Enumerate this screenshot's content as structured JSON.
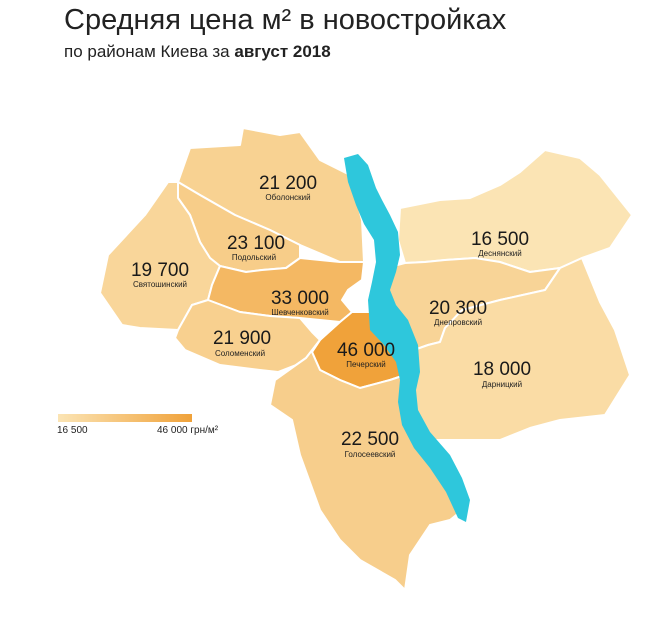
{
  "header": {
    "title": "Средняя цена м² в новостройках",
    "subtitle_prefix": "по районам Киева за",
    "subtitle_bold": "август 2018"
  },
  "legend": {
    "min_label": "16 500",
    "max_label": "46 000 грн/м²",
    "min_value": 16500,
    "max_value": 46000,
    "color_low": "#fbe4b4",
    "color_high": "#f0a23a"
  },
  "river": {
    "color": "#2ec7dc"
  },
  "districts": [
    {
      "key": "obolon",
      "name": "Оболонский",
      "price_label": "21 200",
      "price": 21200
    },
    {
      "key": "podil",
      "name": "Подольский",
      "price_label": "23 100",
      "price": 23100
    },
    {
      "key": "sviatoshyn",
      "name": "Святошинский",
      "price_label": "19 700",
      "price": 19700
    },
    {
      "key": "shevchenko",
      "name": "Шевченковский",
      "price_label": "33 000",
      "price": 33000
    },
    {
      "key": "solomyanka",
      "name": "Соломенский",
      "price_label": "21 900",
      "price": 21900
    },
    {
      "key": "pechersk",
      "name": "Печерский",
      "price_label": "46 000",
      "price": 46000
    },
    {
      "key": "holosiiv",
      "name": "Голосеевский",
      "price_label": "22 500",
      "price": 22500
    },
    {
      "key": "desna",
      "name": "Деснянский",
      "price_label": "16 500",
      "price": 16500
    },
    {
      "key": "dnipro",
      "name": "Днепровский",
      "price_label": "20 300",
      "price": 20300
    },
    {
      "key": "darnytsia",
      "name": "Дарницкий",
      "price_label": "18 000",
      "price": 18000
    }
  ]
}
